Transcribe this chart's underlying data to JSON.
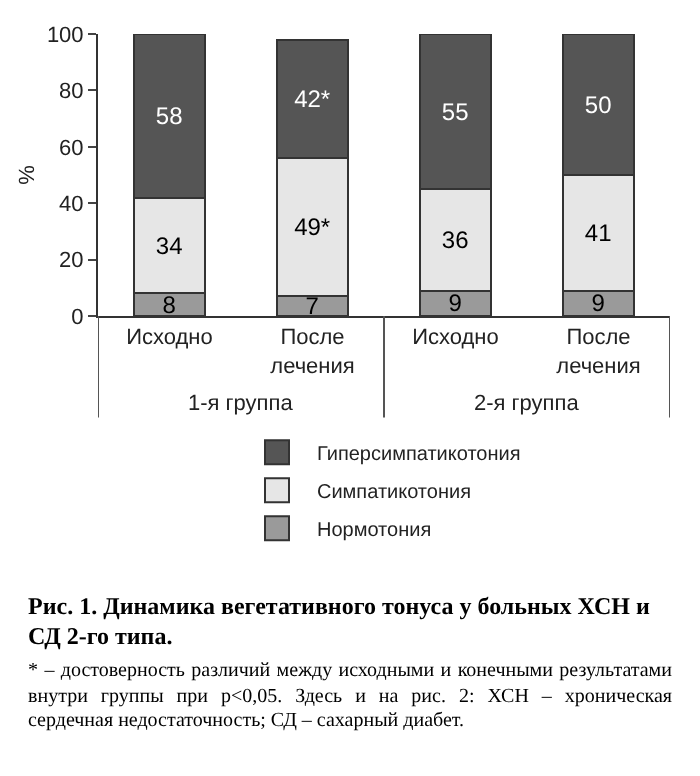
{
  "chart_data": {
    "type": "bar",
    "stacked": true,
    "title": "Рис. 1. Динамика вегетативного тонуса у больных ХСН и СД 2-го типа.",
    "ylabel": "%",
    "categories": [
      "Исходно",
      "После лечения",
      "Исходно",
      "После лечения"
    ],
    "series": [
      {
        "name": "Нормотония",
        "color": "#9a9a9a",
        "values": [
          8,
          7,
          9,
          9
        ],
        "value_labels": [
          "8",
          "7",
          "9",
          "9"
        ]
      },
      {
        "name": "Симпатикотония",
        "color": "#e6e6e6",
        "values": [
          34,
          49,
          36,
          41
        ],
        "value_labels": [
          "34",
          "49*",
          "36",
          "41"
        ]
      },
      {
        "name": "Гиперсимпатикотония",
        "color": "#555555",
        "values": [
          58,
          42,
          55,
          50
        ],
        "value_labels": [
          "58",
          "42*",
          "55",
          "50"
        ]
      }
    ],
    "ylim": [
      0,
      100
    ],
    "yticks": [
      0,
      20,
      40,
      60,
      80,
      100
    ],
    "grid": false,
    "legend": "bottom",
    "annotations": [
      "1-я группа",
      "2-я группа",
      "* – достоверность различий между исходными и конечными результатами внутри группы при p<0,05. Здесь и на рис. 2: ХСН – хроническая сердечная недостаточность; СД – сахарный диабет."
    ]
  }
}
